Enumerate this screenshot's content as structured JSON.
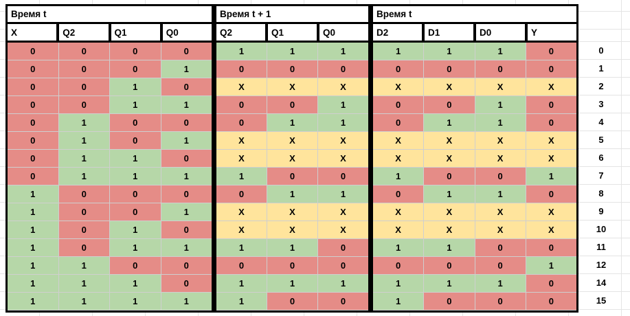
{
  "header": {
    "groups": [
      {
        "label": "Время t"
      },
      {
        "label": "Время t + 1"
      },
      {
        "label": "Время t"
      }
    ],
    "columns": [
      "X",
      "Q2",
      "Q1",
      "Q0",
      "Q2",
      "Q1",
      "Q0",
      "D2",
      "D1",
      "D0",
      "Y"
    ]
  },
  "colors": {
    "zero_fill": "#e58c87",
    "one_fill": "#b6d7a8",
    "dontcare_fill": "#ffe49c",
    "thick_border": "#000000",
    "cell_divider": "#cfcfcf",
    "sheet_gridline": "#e4e4e4"
  },
  "rows": [
    {
      "label": "0",
      "cells": [
        "0",
        "0",
        "0",
        "0",
        "1",
        "1",
        "1",
        "1",
        "1",
        "1",
        "0"
      ]
    },
    {
      "label": "1",
      "cells": [
        "0",
        "0",
        "0",
        "1",
        "0",
        "0",
        "0",
        "0",
        "0",
        "0",
        "0"
      ]
    },
    {
      "label": "2",
      "cells": [
        "0",
        "0",
        "1",
        "0",
        "X",
        "X",
        "X",
        "X",
        "X",
        "X",
        "X"
      ]
    },
    {
      "label": "3",
      "cells": [
        "0",
        "0",
        "1",
        "1",
        "0",
        "0",
        "1",
        "0",
        "0",
        "1",
        "0"
      ]
    },
    {
      "label": "4",
      "cells": [
        "0",
        "1",
        "0",
        "0",
        "0",
        "1",
        "1",
        "0",
        "1",
        "1",
        "0"
      ]
    },
    {
      "label": "5",
      "cells": [
        "0",
        "1",
        "0",
        "1",
        "X",
        "X",
        "X",
        "X",
        "X",
        "X",
        "X"
      ]
    },
    {
      "label": "6",
      "cells": [
        "0",
        "1",
        "1",
        "0",
        "X",
        "X",
        "X",
        "X",
        "X",
        "X",
        "X"
      ]
    },
    {
      "label": "7",
      "cells": [
        "0",
        "1",
        "1",
        "1",
        "1",
        "0",
        "0",
        "1",
        "0",
        "0",
        "1"
      ]
    },
    {
      "label": "8",
      "cells": [
        "1",
        "0",
        "0",
        "0",
        "0",
        "1",
        "1",
        "0",
        "1",
        "1",
        "0"
      ]
    },
    {
      "label": "9",
      "cells": [
        "1",
        "0",
        "0",
        "1",
        "X",
        "X",
        "X",
        "X",
        "X",
        "X",
        "X"
      ]
    },
    {
      "label": "10",
      "cells": [
        "1",
        "0",
        "1",
        "0",
        "X",
        "X",
        "X",
        "X",
        "X",
        "X",
        "X"
      ]
    },
    {
      "label": "11",
      "cells": [
        "1",
        "0",
        "1",
        "1",
        "1",
        "1",
        "0",
        "1",
        "1",
        "0",
        "0"
      ]
    },
    {
      "label": "12",
      "cells": [
        "1",
        "1",
        "0",
        "0",
        "0",
        "0",
        "0",
        "0",
        "0",
        "0",
        "1"
      ]
    },
    {
      "label": "14",
      "cells": [
        "1",
        "1",
        "1",
        "0",
        "1",
        "1",
        "1",
        "1",
        "1",
        "1",
        "0"
      ]
    },
    {
      "label": "15",
      "cells": [
        "1",
        "1",
        "1",
        "1",
        "1",
        "0",
        "0",
        "1",
        "0",
        "0",
        "0"
      ]
    }
  ]
}
